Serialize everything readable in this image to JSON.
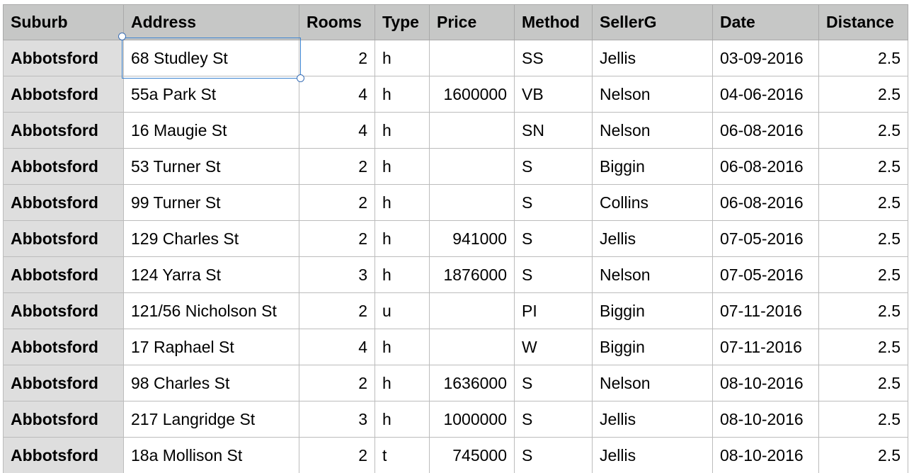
{
  "table": {
    "columns": [
      "Suburb",
      "Address",
      "Rooms",
      "Type",
      "Price",
      "Method",
      "SellerG",
      "Date",
      "Distance"
    ],
    "rows": [
      [
        "Abbotsford",
        "68 Studley St",
        "2",
        "h",
        "",
        "SS",
        "Jellis",
        "03-09-2016",
        "2.5"
      ],
      [
        "Abbotsford",
        "55a Park St",
        "4",
        "h",
        "1600000",
        "VB",
        "Nelson",
        "04-06-2016",
        "2.5"
      ],
      [
        "Abbotsford",
        "16 Maugie St",
        "4",
        "h",
        "",
        "SN",
        "Nelson",
        "06-08-2016",
        "2.5"
      ],
      [
        "Abbotsford",
        "53 Turner St",
        "2",
        "h",
        "",
        "S",
        "Biggin",
        "06-08-2016",
        "2.5"
      ],
      [
        "Abbotsford",
        "99 Turner St",
        "2",
        "h",
        "",
        "S",
        "Collins",
        "06-08-2016",
        "2.5"
      ],
      [
        "Abbotsford",
        "129 Charles St",
        "2",
        "h",
        "941000",
        "S",
        "Jellis",
        "07-05-2016",
        "2.5"
      ],
      [
        "Abbotsford",
        "124 Yarra St",
        "3",
        "h",
        "1876000",
        "S",
        "Nelson",
        "07-05-2016",
        "2.5"
      ],
      [
        "Abbotsford",
        "121/56 Nicholson St",
        "2",
        "u",
        "",
        "PI",
        "Biggin",
        "07-11-2016",
        "2.5"
      ],
      [
        "Abbotsford",
        "17 Raphael St",
        "4",
        "h",
        "",
        "W",
        "Biggin",
        "07-11-2016",
        "2.5"
      ],
      [
        "Abbotsford",
        "98 Charles St",
        "2",
        "h",
        "1636000",
        "S",
        "Nelson",
        "08-10-2016",
        "2.5"
      ],
      [
        "Abbotsford",
        "217 Langridge St",
        "3",
        "h",
        "1000000",
        "S",
        "Jellis",
        "08-10-2016",
        "2.5"
      ],
      [
        "Abbotsford",
        "18a Mollison St",
        "2",
        "t",
        "745000",
        "S",
        "Jellis",
        "08-10-2016",
        "2.5"
      ]
    ],
    "numeric_columns": [
      2,
      4,
      8
    ],
    "selected_cell": {
      "row": 0,
      "col": 1
    }
  },
  "colors": {
    "header_bg": "#c6c7c6",
    "row_header_bg": "#dedede",
    "grid_line": "#bcbcbc",
    "selection": "#3b83d0"
  }
}
